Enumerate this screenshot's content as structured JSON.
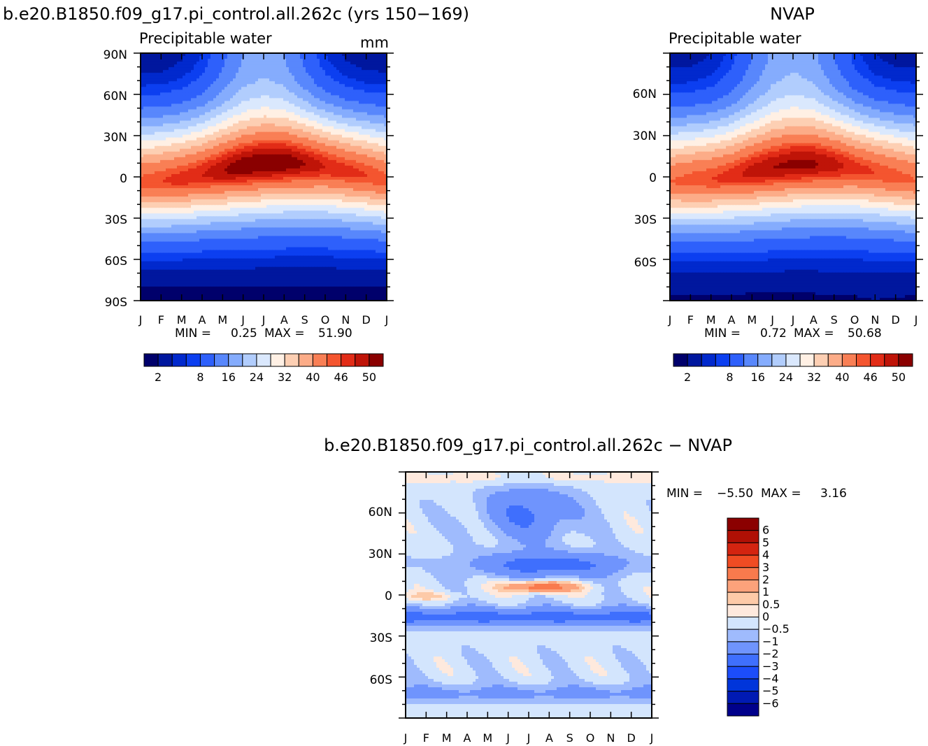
{
  "chart_data": [
    {
      "type": "heatmap",
      "id": "model",
      "title": "b.e20.B1850.f09_g17.pi_control.all.262c (yrs 150−169)",
      "subtitle": "Precipitable water",
      "units": "mm",
      "x_ticks": [
        "J",
        "F",
        "M",
        "A",
        "M",
        "J",
        "J",
        "A",
        "S",
        "O",
        "N",
        "D",
        "J"
      ],
      "y_ticks": [
        "90N",
        "60N",
        "30N",
        "0",
        "30S",
        "60S",
        "90S"
      ],
      "ylim": [
        -90,
        90
      ],
      "min_label": "MIN =",
      "min_value": "0.25",
      "max_label": "MAX =",
      "max_value": "51.90",
      "min": 0.25,
      "max": 51.9,
      "peak_lat": [
        -5,
        -4,
        -2,
        1,
        4,
        7,
        9,
        10,
        9,
        7,
        4,
        1,
        -3
      ],
      "peak_amp": [
        45,
        46,
        47,
        48,
        50,
        51.5,
        51.9,
        51.7,
        50,
        48,
        47,
        46,
        45
      ],
      "nh_pole": [
        1.5,
        1.5,
        2.5,
        5,
        10,
        15,
        17,
        15,
        10,
        5,
        2.5,
        1.5,
        1.5
      ],
      "sh_pole": [
        0.4,
        0.4,
        0.3,
        0.3,
        0.25,
        0.25,
        0.25,
        0.3,
        0.3,
        0.35,
        0.5,
        0.5,
        0.4
      ]
    },
    {
      "type": "heatmap",
      "id": "obs",
      "title": "NVAP",
      "subtitle": "Precipitable water",
      "x_ticks": [
        "J",
        "F",
        "M",
        "A",
        "M",
        "J",
        "J",
        "A",
        "S",
        "O",
        "N",
        "D",
        "J"
      ],
      "y_ticks": [
        "60N",
        "30N",
        "0",
        "30S",
        "60S"
      ],
      "ylim": [
        -90,
        90
      ],
      "min_label": "MIN =",
      "min_value": "0.72",
      "max_label": "MAX =",
      "max_value": "50.68",
      "min": 0.72,
      "max": 50.68,
      "peak_lat": [
        -4,
        -3,
        -2,
        0,
        3,
        6,
        8,
        9,
        8,
        6,
        3,
        0,
        -3
      ],
      "peak_amp": [
        44,
        45,
        46,
        47,
        49,
        50,
        50.6,
        50.4,
        49,
        47,
        46,
        45,
        44
      ],
      "nh_pole": [
        2,
        2,
        3,
        6,
        11,
        16,
        18,
        16,
        11,
        6,
        3,
        2,
        2
      ],
      "sh_pole": [
        1,
        1,
        1,
        0.9,
        0.8,
        0.75,
        0.72,
        0.8,
        0.9,
        1,
        1.2,
        1.1,
        1
      ]
    },
    {
      "type": "heatmap",
      "id": "diff",
      "title": "b.e20.B1850.f09_g17.pi_control.all.262c − NVAP",
      "x_ticks": [
        "J",
        "F",
        "M",
        "A",
        "M",
        "J",
        "J",
        "A",
        "S",
        "O",
        "N",
        "D",
        "J"
      ],
      "y_ticks": [
        "60N",
        "30N",
        "0",
        "30S",
        "60S"
      ],
      "ylim": [
        -90,
        90
      ],
      "min_label": "MIN =",
      "min_value": "−5.50",
      "max_label": "MAX =",
      "max_value": "3.16",
      "min": -5.5,
      "max": 3.16
    }
  ],
  "colorbar_seq": {
    "levels": [
      2,
      4,
      6,
      8,
      12,
      16,
      20,
      24,
      28,
      32,
      36,
      40,
      44,
      46,
      48,
      50
    ],
    "labels": [
      "2",
      "8",
      "16",
      "24",
      "32",
      "40",
      "46",
      "50"
    ],
    "colors": [
      "#00006b",
      "#00179e",
      "#0129cd",
      "#0c3ff0",
      "#2e60fb",
      "#5887fc",
      "#85acfd",
      "#b1cdfd",
      "#dae8fd",
      "#fff0e4",
      "#fdcfb3",
      "#fcac88",
      "#f97f55",
      "#f4552f",
      "#e22c17",
      "#bf1408",
      "#8a0000"
    ]
  },
  "colorbar_diff": {
    "levels": [
      -6,
      -5,
      -4,
      -3,
      -2,
      -1,
      -0.5,
      0,
      0.5,
      1,
      2,
      3,
      4,
      5,
      6
    ],
    "labels": [
      "6",
      "5",
      "4",
      "3",
      "2",
      "1",
      "0.5",
      "0",
      "−0.5",
      "−1",
      "−2",
      "−3",
      "−4",
      "−5",
      "−6"
    ],
    "colors": [
      "#00008b",
      "#001ab3",
      "#0035da",
      "#1c4dfa",
      "#3f6ffd",
      "#6f94fd",
      "#9fbbfd",
      "#d3e5fd",
      "#fee9dd",
      "#fdcaa8",
      "#fca27b",
      "#f97a4d",
      "#f04c23",
      "#d42410",
      "#b01005",
      "#8b0000"
    ]
  }
}
